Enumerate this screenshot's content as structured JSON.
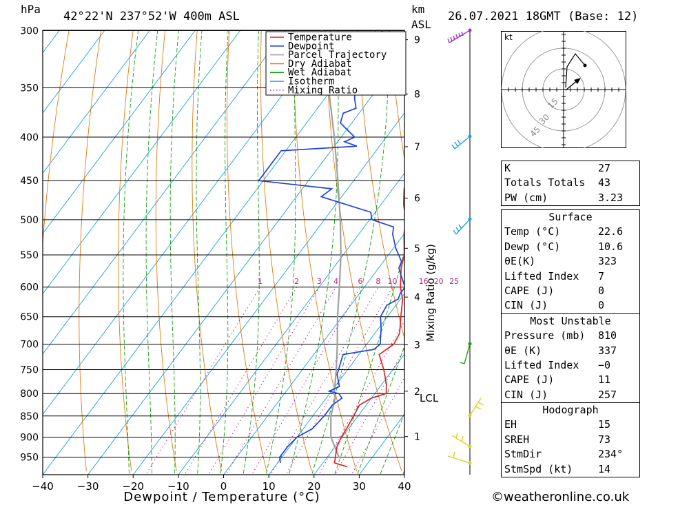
{
  "header": {
    "hpa_label": "hPa",
    "location": "42°22'N  237°52'W  400m  ASL",
    "km_label": "km",
    "asl_label": "ASL",
    "datetime": "26.07.2021  18GMT  (Base: 12)"
  },
  "chart_data": {
    "type": "line",
    "xlabel": "Dewpoint / Temperature (°C)",
    "ylabel": "hPa",
    "xlim": [
      -40,
      40
    ],
    "pressure_range": [
      300,
      1000
    ],
    "x_ticks": [
      "−40",
      "−30",
      "−20",
      "−10",
      "0",
      "10",
      "20",
      "30",
      "40"
    ],
    "pressure_ticks": [
      "300",
      "350",
      "400",
      "450",
      "500",
      "550",
      "600",
      "650",
      "700",
      "750",
      "800",
      "850",
      "900",
      "950"
    ],
    "km_ticks": [
      "1",
      "2",
      "3",
      "4",
      "5",
      "6",
      "7",
      "8",
      "9"
    ],
    "lcl_label": "LCL",
    "mixing_ratio_axis_label": "Mixing Ratio (g/kg)",
    "mixing_ratio_labels": [
      "1",
      "2",
      "3",
      "4",
      "6",
      "8",
      "10",
      "16",
      "20",
      "25"
    ],
    "legend": [
      {
        "name": "Temperature",
        "color": "#e02020",
        "style": "solid"
      },
      {
        "name": "Dewpoint",
        "color": "#1f3fe0",
        "style": "solid"
      },
      {
        "name": "Parcel Trajectory",
        "color": "#a0a0a0",
        "style": "solid"
      },
      {
        "name": "Dry Adiabat",
        "color": "#e07a10",
        "style": "solid"
      },
      {
        "name": "Wet Adiabat",
        "color": "#12a012",
        "style": "solid"
      },
      {
        "name": "Isotherm",
        "color": "#1aa0e0",
        "style": "solid"
      },
      {
        "name": "Mixing Ratio",
        "color": "#c0208a",
        "style": "dotted"
      }
    ],
    "series": [
      {
        "name": "Temperature",
        "color": "#e02020",
        "points": [
          [
            975,
            26.0
          ],
          [
            965,
            22.6
          ],
          [
            950,
            21.8
          ],
          [
            925,
            20.5
          ],
          [
            900,
            19.8
          ],
          [
            875,
            19.5
          ],
          [
            850,
            19.0
          ],
          [
            825,
            18.5
          ],
          [
            810,
            20.0
          ],
          [
            800,
            22.5
          ],
          [
            780,
            21.0
          ],
          [
            750,
            18.0
          ],
          [
            720,
            14.5
          ],
          [
            700,
            16.0
          ],
          [
            680,
            15.5
          ],
          [
            650,
            13.0
          ],
          [
            620,
            10.5
          ],
          [
            600,
            8.0
          ],
          [
            570,
            5.0
          ],
          [
            550,
            3.5
          ],
          [
            520,
            0.0
          ],
          [
            500,
            -2.0
          ],
          [
            480,
            -5.0
          ],
          [
            460,
            -7.5
          ],
          [
            450,
            -7.5
          ],
          [
            430,
            -10.0
          ],
          [
            410,
            -12.5
          ],
          [
            400,
            -14.5
          ],
          [
            380,
            -18.0
          ],
          [
            365,
            -21.0
          ],
          [
            350,
            -22.5
          ],
          [
            330,
            -25.5
          ],
          [
            315,
            -29.0
          ],
          [
            300,
            -31.0
          ]
        ]
      },
      {
        "name": "Dewpoint",
        "color": "#1f3fe0",
        "points": [
          [
            965,
            10.6
          ],
          [
            950,
            9.5
          ],
          [
            925,
            9.5
          ],
          [
            900,
            10.0
          ],
          [
            880,
            12.0
          ],
          [
            850,
            12.5
          ],
          [
            825,
            12.5
          ],
          [
            810,
            13.5
          ],
          [
            800,
            12.0
          ],
          [
            795,
            9.5
          ],
          [
            785,
            11.0
          ],
          [
            760,
            8.5
          ],
          [
            730,
            7.0
          ],
          [
            720,
            6.5
          ],
          [
            710,
            12.5
          ],
          [
            700,
            13.0
          ],
          [
            670,
            10.5
          ],
          [
            650,
            8.5
          ],
          [
            630,
            8.0
          ],
          [
            620,
            9.5
          ],
          [
            610,
            9.0
          ],
          [
            600,
            9.0
          ],
          [
            580,
            6.0
          ],
          [
            570,
            4.5
          ],
          [
            560,
            4.0
          ],
          [
            540,
            0.5
          ],
          [
            520,
            -2.5
          ],
          [
            510,
            -3.5
          ],
          [
            500,
            -9.5
          ],
          [
            490,
            -11.0
          ],
          [
            470,
            -24.5
          ],
          [
            460,
            -23.5
          ],
          [
            450,
            -41.0
          ],
          [
            430,
            -41.0
          ],
          [
            415,
            -41.0
          ],
          [
            410,
            -25.0
          ],
          [
            405,
            -28.5
          ],
          [
            400,
            -27.0
          ],
          [
            385,
            -32.5
          ],
          [
            375,
            -33.5
          ],
          [
            370,
            -31.5
          ],
          [
            360,
            -33.5
          ],
          [
            350,
            -35.0
          ],
          [
            330,
            -37.5
          ],
          [
            310,
            -38.0
          ],
          [
            300,
            -38.5
          ]
        ]
      },
      {
        "name": "Parcel Trajectory",
        "color": "#a0a0a0",
        "points": [
          [
            950,
            22.6
          ],
          [
            900,
            17.5
          ],
          [
            850,
            14.0
          ],
          [
            810,
            12.0
          ],
          [
            800,
            11.0
          ],
          [
            750,
            7.5
          ],
          [
            700,
            3.5
          ],
          [
            650,
            -1.0
          ],
          [
            600,
            -5.5
          ],
          [
            550,
            -10.5
          ],
          [
            500,
            -16.5
          ],
          [
            450,
            -23.5
          ],
          [
            400,
            -31.5
          ],
          [
            350,
            -41.0
          ],
          [
            300,
            -52.0
          ]
        ]
      }
    ]
  },
  "indices": {
    "k_label": "K",
    "k": "27",
    "tt_label": "Totals Totals",
    "tt": "43",
    "pw_label": "PW (cm)",
    "pw": "3.23"
  },
  "surface": {
    "title": "Surface",
    "temp_label": "Temp (°C)",
    "temp": "22.6",
    "dewp_label": "Dewp (°C)",
    "dewp": "10.6",
    "theta_label": "θE(K)",
    "theta": "323",
    "li_label": "Lifted Index",
    "li": "7",
    "cape_label": "CAPE (J)",
    "cape": "0",
    "cin_label": "CIN (J)",
    "cin": "0"
  },
  "most_unstable": {
    "title": "Most Unstable",
    "pres_label": "Pressure (mb)",
    "pres": "810",
    "theta_label": "θE (K)",
    "theta": "337",
    "li_label": "Lifted Index",
    "li": "−0",
    "cape_label": "CAPE (J)",
    "cape": "11",
    "cin_label": "CIN (J)",
    "cin": "257"
  },
  "hodograph_table": {
    "title": "Hodograph",
    "eh_label": "EH",
    "eh": "15",
    "sreh_label": "SREH",
    "sreh": "73",
    "stmdir_label": "StmDir",
    "stmdir": "234°",
    "stmspd_label": "StmSpd (kt)",
    "stmspd": "14"
  },
  "hodograph": {
    "unit_label": "kt",
    "ring_labels": [
      "15",
      "30",
      "45"
    ]
  },
  "wind_profile": {
    "colors": {
      "high": "#9933cc",
      "upper": "#1aa0e0",
      "mid": "#12a012",
      "low": "#e0d020"
    }
  },
  "credit": "©weatheronline.co.uk"
}
